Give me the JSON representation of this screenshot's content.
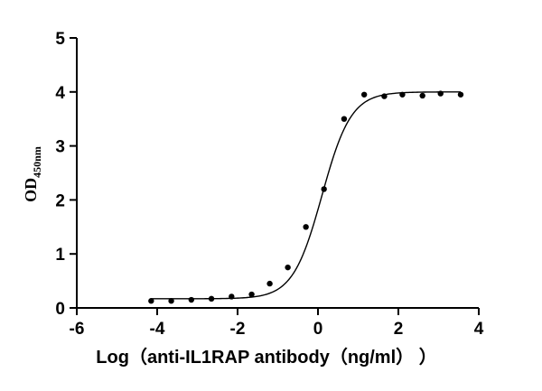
{
  "chart_data": {
    "type": "scatter",
    "xlabel": "Log（anti-IL1RAP antibody（ng/ml） ）",
    "ylabel": {
      "main": "OD",
      "sub": "450nm"
    },
    "xlim": [
      -6,
      4
    ],
    "ylim": [
      0,
      5
    ],
    "xticks": [
      -6,
      -4,
      -2,
      0,
      2,
      4
    ],
    "yticks": [
      0,
      1,
      2,
      3,
      4,
      5
    ],
    "grid": false,
    "points": [
      {
        "x": -4.15,
        "y": 0.13
      },
      {
        "x": -3.65,
        "y": 0.13
      },
      {
        "x": -3.15,
        "y": 0.15
      },
      {
        "x": -2.65,
        "y": 0.17
      },
      {
        "x": -2.15,
        "y": 0.21
      },
      {
        "x": -1.65,
        "y": 0.25
      },
      {
        "x": -1.2,
        "y": 0.45
      },
      {
        "x": -0.75,
        "y": 0.75
      },
      {
        "x": -0.3,
        "y": 1.5
      },
      {
        "x": 0.15,
        "y": 2.2
      },
      {
        "x": 0.65,
        "y": 3.5
      },
      {
        "x": 1.15,
        "y": 3.95
      },
      {
        "x": 1.65,
        "y": 3.92
      },
      {
        "x": 2.1,
        "y": 3.95
      },
      {
        "x": 2.6,
        "y": 3.93
      },
      {
        "x": 3.05,
        "y": 3.97
      },
      {
        "x": 3.55,
        "y": 3.95
      }
    ],
    "fit": {
      "model": "four-parameter logistic",
      "bottom": 0.17,
      "top": 4.0,
      "log_ec50": 0.1,
      "hill_slope": 1.2,
      "x_range": [
        -4.15,
        3.55
      ]
    }
  }
}
